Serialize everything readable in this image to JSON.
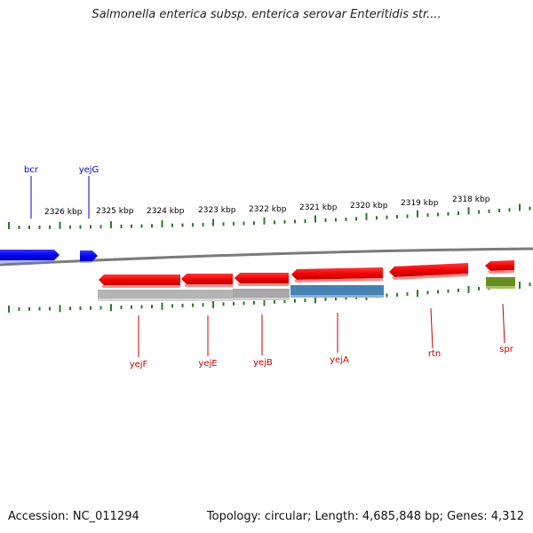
{
  "title": "Salmonella enterica subsp. enterica serovar Enteritidis str....",
  "footer": {
    "accession": "Accession: NC_011294",
    "summary": "Topology: circular; Length: 4,685,848 bp; Genes: 4,312"
  },
  "scale_labels": [
    "2326 kbp",
    "2325 kbp",
    "2324 kbp",
    "2323 kbp",
    "2322 kbp",
    "2321 kbp",
    "2320 kbp",
    "2319 kbp",
    "2318 kbp"
  ],
  "genes_forward": [
    {
      "name": "bcr",
      "color": "#0000ee"
    },
    {
      "name": "yejG",
      "color": "#0000ee"
    }
  ],
  "genes_reverse": [
    {
      "name": "yejF",
      "color": "#ff0000"
    },
    {
      "name": "yejE",
      "color": "#ff0000"
    },
    {
      "name": "yejB",
      "color": "#ff0000"
    },
    {
      "name": "yejA",
      "color": "#ff0000"
    },
    {
      "name": "rtn",
      "color": "#ff0000"
    },
    {
      "name": "spr",
      "color": "#ff0000"
    }
  ],
  "colors": {
    "backbone": "#808080",
    "tick": "#2a7a2a",
    "forward_label": "#0000cc",
    "reverse_label": "#cc0000",
    "feature_gray": "#b4b4b4",
    "feature_blue": "#4682b4",
    "feature_green": "#6b8e23"
  }
}
